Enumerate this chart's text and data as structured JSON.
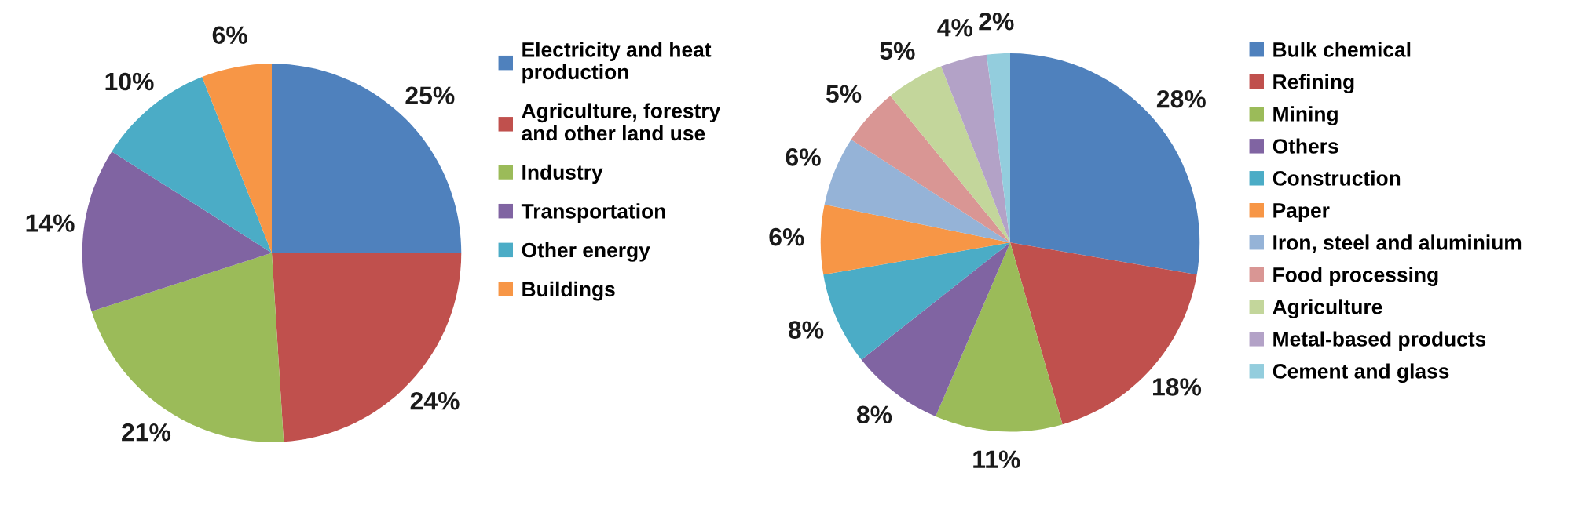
{
  "chart_data": [
    {
      "type": "pie",
      "categories": [
        "Electricity and heat\nproduction",
        "Agriculture, forestry\nand other land use",
        "Industry",
        "Transportation",
        "Other energy",
        "Buildings"
      ],
      "values": [
        25,
        24,
        21,
        14,
        10,
        6
      ],
      "colors": [
        "#4f81bd",
        "#c0504d",
        "#9bbb59",
        "#8064a2",
        "#4bacc6",
        "#f79646"
      ],
      "value_labels": [
        "25%",
        "24%",
        "21%",
        "14%",
        "10%",
        "6%"
      ],
      "legend": "right"
    },
    {
      "type": "pie",
      "categories": [
        "Bulk chemical",
        "Refining",
        "Mining",
        "Others",
        "Construction",
        "Paper",
        "Iron, steel and aluminium",
        "Food processing",
        "Agriculture",
        "Metal-based products",
        "Cement and glass"
      ],
      "values": [
        28,
        18,
        11,
        8,
        8,
        6,
        6,
        5,
        5,
        4,
        2
      ],
      "colors": [
        "#4f81bd",
        "#c0504d",
        "#9bbb59",
        "#8064a2",
        "#4bacc6",
        "#f79646",
        "#95b3d7",
        "#d99694",
        "#c3d69b",
        "#b3a2c7",
        "#93cddd"
      ],
      "value_labels": [
        "28%",
        "18%",
        "11%",
        "8%",
        "8%",
        "6%",
        "6%",
        "5%",
        "5%",
        "4%",
        "2%"
      ],
      "legend": "right"
    }
  ]
}
